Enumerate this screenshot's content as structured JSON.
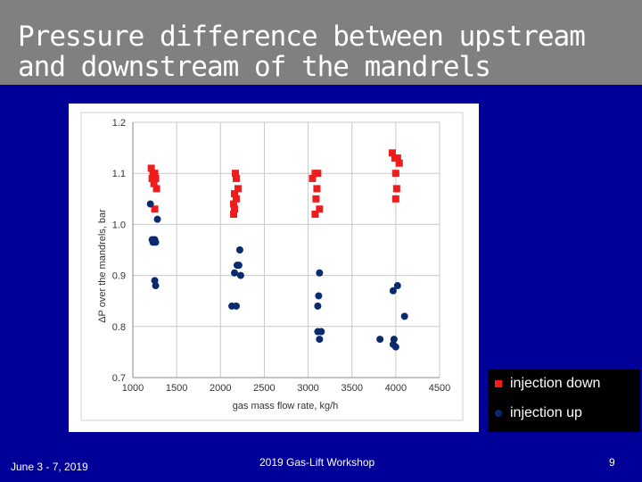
{
  "slide": {
    "title_line1": "Pressure difference between upstream",
    "title_line2": "and downstream of the mandrels",
    "footer_date": "June 3 - 7, 2019",
    "footer_workshop": "2019 Gas-Lift Workshop",
    "page_number": "9"
  },
  "legend": {
    "down_label": "injection down",
    "up_label": "injection up"
  },
  "colors": {
    "background": "#000099",
    "title_bar": "#808080",
    "injection_down": "#ee1c1c",
    "injection_up": "#0a2a6e"
  },
  "chart_data": {
    "type": "scatter",
    "title": "",
    "xlabel": "gas mass flow rate, kg/h",
    "ylabel": "ΔP over the mandrels, bar",
    "xlim": [
      1000,
      4500
    ],
    "ylim": [
      0.7,
      1.2
    ],
    "xticks": [
      "1000",
      "1500",
      "2000",
      "2500",
      "3000",
      "3500",
      "4000",
      "4500"
    ],
    "yticks": [
      "0.7",
      "0.8",
      "0.9",
      "1.0",
      "1.1",
      "1.2"
    ],
    "grid": true,
    "series": [
      {
        "name": "injection down",
        "marker": "square",
        "color": "#ee1c1c",
        "points": [
          [
            1210,
            1.11
          ],
          [
            1230,
            1.1
          ],
          [
            1250,
            1.1
          ],
          [
            1220,
            1.09
          ],
          [
            1260,
            1.09
          ],
          [
            1240,
            1.08
          ],
          [
            1270,
            1.07
          ],
          [
            1250,
            1.03
          ],
          [
            2170,
            1.1
          ],
          [
            2180,
            1.09
          ],
          [
            2200,
            1.07
          ],
          [
            2160,
            1.06
          ],
          [
            2180,
            1.05
          ],
          [
            2150,
            1.04
          ],
          [
            2160,
            1.03
          ],
          [
            2150,
            1.02
          ],
          [
            3050,
            1.09
          ],
          [
            3080,
            1.1
          ],
          [
            3110,
            1.1
          ],
          [
            3100,
            1.07
          ],
          [
            3090,
            1.05
          ],
          [
            3130,
            1.03
          ],
          [
            3080,
            1.02
          ],
          [
            3960,
            1.14
          ],
          [
            3990,
            1.13
          ],
          [
            4020,
            1.13
          ],
          [
            4040,
            1.12
          ],
          [
            4000,
            1.1
          ],
          [
            4010,
            1.07
          ],
          [
            4000,
            1.05
          ]
        ]
      },
      {
        "name": "injection up",
        "marker": "circle",
        "color": "#0a2a6e",
        "points": [
          [
            1200,
            1.04
          ],
          [
            1280,
            1.01
          ],
          [
            1220,
            0.97
          ],
          [
            1250,
            0.97
          ],
          [
            1230,
            0.965
          ],
          [
            1260,
            0.965
          ],
          [
            1250,
            0.89
          ],
          [
            1260,
            0.88
          ],
          [
            2220,
            0.95
          ],
          [
            2190,
            0.92
          ],
          [
            2210,
            0.92
          ],
          [
            2160,
            0.905
          ],
          [
            2230,
            0.9
          ],
          [
            2130,
            0.84
          ],
          [
            2180,
            0.84
          ],
          [
            3130,
            0.905
          ],
          [
            3120,
            0.86
          ],
          [
            3110,
            0.84
          ],
          [
            3110,
            0.79
          ],
          [
            3150,
            0.79
          ],
          [
            3130,
            0.775
          ],
          [
            3820,
            0.775
          ],
          [
            3970,
            0.87
          ],
          [
            4020,
            0.88
          ],
          [
            4100,
            0.82
          ],
          [
            3980,
            0.775
          ],
          [
            3970,
            0.765
          ],
          [
            4000,
            0.76
          ]
        ]
      }
    ]
  }
}
